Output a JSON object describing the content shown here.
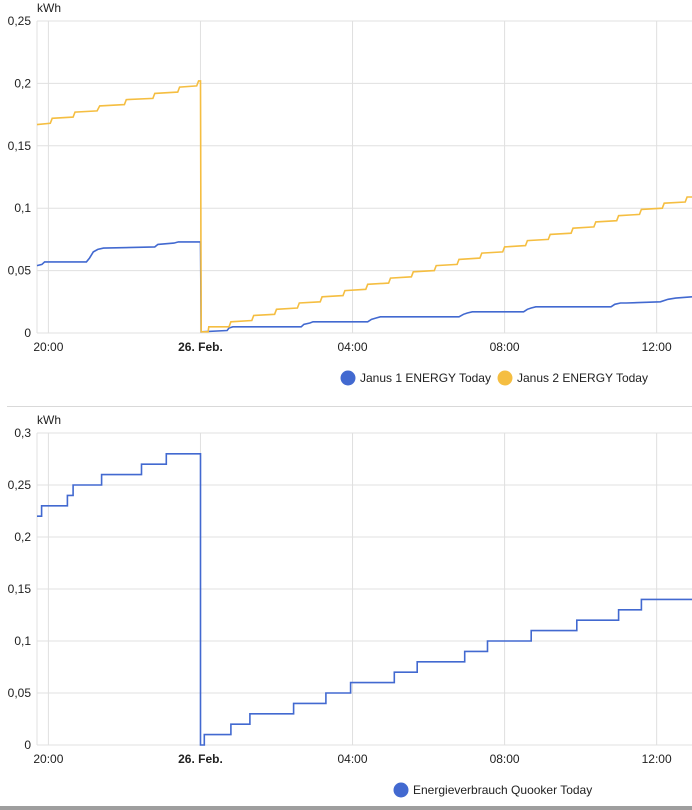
{
  "chart_data": [
    {
      "type": "line",
      "ylabel": "kWh",
      "ylim": [
        0,
        0.25
      ],
      "yticks": [
        0,
        0.05,
        0.1,
        0.15,
        0.2,
        0.25
      ],
      "ytick_labels": [
        "0",
        "0,05",
        "0,1",
        "0,15",
        "0,2",
        "0,25"
      ],
      "xlim_hours": [
        19.7,
        12.93
      ],
      "xticks": [
        {
          "label": "20:00",
          "hour": 20,
          "bold": false
        },
        {
          "label": "26. Feb.",
          "hour": 0,
          "bold": true
        },
        {
          "label": "04:00",
          "hour": 4,
          "bold": false
        },
        {
          "label": "08:00",
          "hour": 8,
          "bold": false
        },
        {
          "label": "12:00",
          "hour": 12,
          "bold": false
        }
      ],
      "grid": true,
      "legend": "bottom-center",
      "series": [
        {
          "name": "Janus 1 ENERGY Today",
          "color": "#4269d0",
          "points": [
            [
              19.7,
              0.054
            ],
            [
              19.83,
              0.055
            ],
            [
              19.9,
              0.057
            ],
            [
              21.0,
              0.057
            ],
            [
              21.08,
              0.06
            ],
            [
              21.18,
              0.065
            ],
            [
              21.3,
              0.067
            ],
            [
              21.45,
              0.068
            ],
            [
              22.8,
              0.069
            ],
            [
              22.88,
              0.071
            ],
            [
              23.3,
              0.072
            ],
            [
              23.42,
              0.073
            ],
            [
              24.0,
              0.073
            ],
            [
              24.02,
              0.001
            ],
            [
              24.7,
              0.002
            ],
            [
              24.75,
              0.004
            ],
            [
              24.85,
              0.005
            ],
            [
              26.65,
              0.005
            ],
            [
              26.72,
              0.007
            ],
            [
              26.88,
              0.008
            ],
            [
              26.96,
              0.009
            ],
            [
              28.4,
              0.009
            ],
            [
              28.5,
              0.011
            ],
            [
              28.62,
              0.012
            ],
            [
              28.73,
              0.013
            ],
            [
              30.8,
              0.013
            ],
            [
              30.92,
              0.015
            ],
            [
              31.02,
              0.016
            ],
            [
              31.15,
              0.017
            ],
            [
              32.2,
              0.017
            ],
            [
              32.5,
              0.017
            ],
            [
              32.6,
              0.019
            ],
            [
              32.7,
              0.02
            ],
            [
              32.82,
              0.021
            ],
            [
              34.8,
              0.021
            ],
            [
              34.9,
              0.023
            ],
            [
              35.05,
              0.024
            ],
            [
              35.2,
              0.024
            ],
            [
              36.1,
              0.025
            ],
            [
              36.3,
              0.027
            ],
            [
              36.5,
              0.028
            ],
            [
              36.93,
              0.029
            ]
          ]
        },
        {
          "name": "Janus 2 ENERGY Today",
          "color": "#f5be41",
          "points": [
            [
              19.7,
              0.167
            ],
            [
              20.05,
              0.168
            ],
            [
              20.1,
              0.172
            ],
            [
              20.65,
              0.173
            ],
            [
              20.7,
              0.177
            ],
            [
              21.28,
              0.178
            ],
            [
              21.35,
              0.182
            ],
            [
              22.0,
              0.183
            ],
            [
              22.05,
              0.187
            ],
            [
              22.75,
              0.188
            ],
            [
              22.8,
              0.192
            ],
            [
              23.4,
              0.193
            ],
            [
              23.45,
              0.197
            ],
            [
              23.9,
              0.198
            ],
            [
              23.95,
              0.202
            ],
            [
              24.0,
              0.202
            ],
            [
              24.02,
              0.001
            ],
            [
              24.2,
              0.001
            ],
            [
              24.22,
              0.005
            ],
            [
              24.75,
              0.005
            ],
            [
              24.8,
              0.009
            ],
            [
              25.35,
              0.01
            ],
            [
              25.4,
              0.014
            ],
            [
              25.95,
              0.015
            ],
            [
              26.0,
              0.019
            ],
            [
              26.55,
              0.02
            ],
            [
              26.6,
              0.024
            ],
            [
              27.15,
              0.025
            ],
            [
              27.2,
              0.029
            ],
            [
              27.75,
              0.03
            ],
            [
              27.8,
              0.034
            ],
            [
              28.35,
              0.035
            ],
            [
              28.4,
              0.039
            ],
            [
              28.95,
              0.04
            ],
            [
              29.0,
              0.044
            ],
            [
              29.55,
              0.045
            ],
            [
              29.6,
              0.049
            ],
            [
              30.15,
              0.05
            ],
            [
              30.2,
              0.054
            ],
            [
              30.75,
              0.055
            ],
            [
              30.8,
              0.059
            ],
            [
              31.35,
              0.06
            ],
            [
              31.4,
              0.064
            ],
            [
              31.95,
              0.065
            ],
            [
              32.0,
              0.069
            ],
            [
              32.55,
              0.07
            ],
            [
              32.6,
              0.074
            ],
            [
              33.15,
              0.075
            ],
            [
              33.2,
              0.079
            ],
            [
              33.75,
              0.08
            ],
            [
              33.8,
              0.084
            ],
            [
              34.35,
              0.085
            ],
            [
              34.4,
              0.089
            ],
            [
              34.95,
              0.09
            ],
            [
              35.0,
              0.094
            ],
            [
              35.55,
              0.095
            ],
            [
              35.6,
              0.099
            ],
            [
              36.15,
              0.1
            ],
            [
              36.2,
              0.104
            ],
            [
              36.75,
              0.105
            ],
            [
              36.8,
              0.109
            ],
            [
              36.93,
              0.109
            ]
          ]
        }
      ]
    },
    {
      "type": "line",
      "ylabel": "kWh",
      "ylim": [
        0,
        0.3
      ],
      "yticks": [
        0,
        0.05,
        0.1,
        0.15,
        0.2,
        0.25,
        0.3
      ],
      "ytick_labels": [
        "0",
        "0,05",
        "0,1",
        "0,15",
        "0,2",
        "0,25",
        "0,3"
      ],
      "xlim_hours": [
        19.7,
        12.93
      ],
      "xticks": [
        {
          "label": "20:00",
          "hour": 20,
          "bold": false
        },
        {
          "label": "26. Feb.",
          "hour": 0,
          "bold": true
        },
        {
          "label": "04:00",
          "hour": 4,
          "bold": false
        },
        {
          "label": "08:00",
          "hour": 8,
          "bold": false
        },
        {
          "label": "12:00",
          "hour": 12,
          "bold": false
        }
      ],
      "grid": true,
      "legend": "bottom-center",
      "series": [
        {
          "name": "Energieverbrauch Quooker Today",
          "color": "#4269d0",
          "points": [
            [
              19.7,
              0.22
            ],
            [
              19.82,
              0.22
            ],
            [
              19.82,
              0.23
            ],
            [
              20.5,
              0.23
            ],
            [
              20.5,
              0.24
            ],
            [
              20.65,
              0.24
            ],
            [
              20.65,
              0.25
            ],
            [
              21.4,
              0.25
            ],
            [
              21.4,
              0.26
            ],
            [
              22.45,
              0.26
            ],
            [
              22.45,
              0.27
            ],
            [
              23.1,
              0.27
            ],
            [
              23.1,
              0.28
            ],
            [
              24.0,
              0.28
            ],
            [
              24.0,
              0.0
            ],
            [
              24.1,
              0.0
            ],
            [
              24.1,
              0.01
            ],
            [
              24.8,
              0.01
            ],
            [
              24.8,
              0.02
            ],
            [
              25.3,
              0.02
            ],
            [
              25.3,
              0.03
            ],
            [
              26.45,
              0.03
            ],
            [
              26.45,
              0.04
            ],
            [
              27.3,
              0.04
            ],
            [
              27.3,
              0.05
            ],
            [
              27.95,
              0.05
            ],
            [
              27.95,
              0.06
            ],
            [
              29.1,
              0.06
            ],
            [
              29.1,
              0.07
            ],
            [
              29.7,
              0.07
            ],
            [
              29.7,
              0.08
            ],
            [
              30.95,
              0.08
            ],
            [
              30.95,
              0.09
            ],
            [
              31.55,
              0.09
            ],
            [
              31.55,
              0.1
            ],
            [
              32.7,
              0.1
            ],
            [
              32.7,
              0.11
            ],
            [
              33.9,
              0.11
            ],
            [
              33.9,
              0.12
            ],
            [
              35.0,
              0.12
            ],
            [
              35.0,
              0.13
            ],
            [
              35.6,
              0.13
            ],
            [
              35.6,
              0.14
            ],
            [
              36.93,
              0.14
            ]
          ]
        }
      ]
    }
  ]
}
